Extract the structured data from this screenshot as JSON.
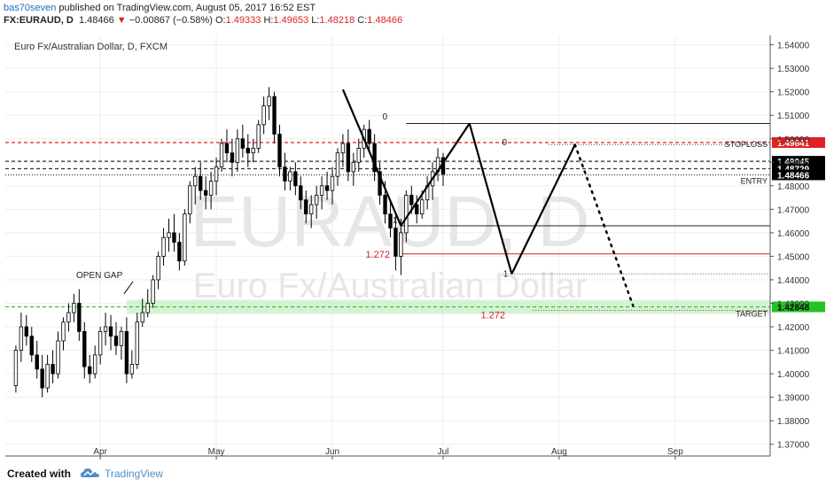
{
  "header": {
    "author": "bas70seven",
    "published": "published on TradingView.com, August 05, 2017 16:52 EST",
    "symbol": "FX:EURAUD, D",
    "last": "1.48466",
    "change": "−0.00867 (−0.58%)",
    "o_label": "O:",
    "o": "1.49333",
    "h_label": "H:",
    "h": "1.49653",
    "l_label": "L:",
    "l": "1.48218",
    "c_label": "C:",
    "c": "1.48466"
  },
  "footer": {
    "created_with": "Created with",
    "brand": "TradingView"
  },
  "colors": {
    "up": "#ffffff",
    "down": "#000000",
    "stoploss": "#e02020",
    "target": "#22c322",
    "fib": "#d62424"
  },
  "chart_data": {
    "type": "candlestick",
    "title": "Euro Fx/Australian Dollar, D, FXCM",
    "watermark_symbol": "EURAUD, D",
    "watermark_name": "Euro Fx/Australian Dollar",
    "ylim": [
      1.365,
      1.544
    ],
    "y_ticks": [
      "1.37000",
      "1.38000",
      "1.39000",
      "1.40000",
      "1.41000",
      "1.42000",
      "1.43000",
      "1.44000",
      "1.45000",
      "1.46000",
      "1.47000",
      "1.48000",
      "1.49000",
      "1.50000",
      "1.51000",
      "1.52000",
      "1.53000",
      "1.54000"
    ],
    "x_ticks": [
      {
        "label": "Apr",
        "x": 16
      },
      {
        "label": "May",
        "x": 38
      },
      {
        "label": "Jun",
        "x": 60
      },
      {
        "label": "Jul",
        "x": 81
      },
      {
        "label": "Aug",
        "x": 103
      },
      {
        "label": "Sep",
        "x": 125
      }
    ],
    "x_range": [
      -2,
      143
    ],
    "candles": [
      [
        1.395,
        1.412,
        1.392,
        1.41
      ],
      [
        1.41,
        1.426,
        1.405,
        1.42
      ],
      [
        1.42,
        1.425,
        1.412,
        1.416
      ],
      [
        1.416,
        1.42,
        1.405,
        1.408
      ],
      [
        1.408,
        1.414,
        1.398,
        1.402
      ],
      [
        1.402,
        1.408,
        1.39,
        1.394
      ],
      [
        1.394,
        1.408,
        1.392,
        1.404
      ],
      [
        1.404,
        1.41,
        1.396,
        1.4
      ],
      [
        1.4,
        1.418,
        1.398,
        1.414
      ],
      [
        1.414,
        1.424,
        1.41,
        1.422
      ],
      [
        1.422,
        1.43,
        1.418,
        1.426
      ],
      [
        1.426,
        1.434,
        1.422,
        1.43
      ],
      [
        1.43,
        1.436,
        1.414,
        1.418
      ],
      [
        1.418,
        1.422,
        1.398,
        1.403
      ],
      [
        1.403,
        1.408,
        1.396,
        1.4
      ],
      [
        1.4,
        1.412,
        1.398,
        1.408
      ],
      [
        1.408,
        1.42,
        1.404,
        1.418
      ],
      [
        1.418,
        1.426,
        1.412,
        1.42
      ],
      [
        1.42,
        1.425,
        1.41,
        1.416
      ],
      [
        1.416,
        1.422,
        1.408,
        1.412
      ],
      [
        1.412,
        1.42,
        1.406,
        1.418
      ],
      [
        1.418,
        1.424,
        1.396,
        1.4
      ],
      [
        1.4,
        1.41,
        1.398,
        1.404
      ],
      [
        1.404,
        1.426,
        1.402,
        1.422
      ],
      [
        1.422,
        1.432,
        1.42,
        1.426
      ],
      [
        1.426,
        1.436,
        1.424,
        1.43
      ],
      [
        1.43,
        1.442,
        1.428,
        1.44
      ],
      [
        1.44,
        1.452,
        1.436,
        1.45
      ],
      [
        1.45,
        1.462,
        1.446,
        1.458
      ],
      [
        1.458,
        1.466,
        1.452,
        1.46
      ],
      [
        1.46,
        1.468,
        1.452,
        1.456
      ],
      [
        1.456,
        1.46,
        1.444,
        1.448
      ],
      [
        1.448,
        1.47,
        1.446,
        1.468
      ],
      [
        1.468,
        1.482,
        1.464,
        1.48
      ],
      [
        1.48,
        1.488,
        1.472,
        1.484
      ],
      [
        1.484,
        1.49,
        1.474,
        1.478
      ],
      [
        1.478,
        1.484,
        1.47,
        1.476
      ],
      [
        1.476,
        1.486,
        1.47,
        1.482
      ],
      [
        1.482,
        1.492,
        1.476,
        1.488
      ],
      [
        1.488,
        1.5,
        1.486,
        1.498
      ],
      [
        1.498,
        1.504,
        1.49,
        1.494
      ],
      [
        1.494,
        1.5,
        1.484,
        1.49
      ],
      [
        1.49,
        1.504,
        1.486,
        1.5
      ],
      [
        1.5,
        1.506,
        1.492,
        1.496
      ],
      [
        1.496,
        1.502,
        1.488,
        1.494
      ],
      [
        1.494,
        1.5,
        1.49,
        1.496
      ],
      [
        1.496,
        1.508,
        1.494,
        1.506
      ],
      [
        1.506,
        1.518,
        1.502,
        1.514
      ],
      [
        1.514,
        1.522,
        1.508,
        1.518
      ],
      [
        1.518,
        1.52,
        1.498,
        1.502
      ],
      [
        1.502,
        1.506,
        1.484,
        1.488
      ],
      [
        1.488,
        1.494,
        1.478,
        1.482
      ],
      [
        1.482,
        1.488,
        1.478,
        1.486
      ],
      [
        1.486,
        1.49,
        1.476,
        1.48
      ],
      [
        1.48,
        1.484,
        1.47,
        1.474
      ],
      [
        1.474,
        1.478,
        1.464,
        1.468
      ],
      [
        1.468,
        1.476,
        1.462,
        1.472
      ],
      [
        1.472,
        1.48,
        1.466,
        1.476
      ],
      [
        1.476,
        1.484,
        1.47,
        1.48
      ],
      [
        1.48,
        1.486,
        1.474,
        1.478
      ],
      [
        1.478,
        1.488,
        1.472,
        1.484
      ],
      [
        1.484,
        1.496,
        1.48,
        1.494
      ],
      [
        1.494,
        1.502,
        1.488,
        1.498
      ],
      [
        1.498,
        1.504,
        1.482,
        1.486
      ],
      [
        1.486,
        1.494,
        1.48,
        1.49
      ],
      [
        1.49,
        1.5,
        1.486,
        1.496
      ],
      [
        1.496,
        1.506,
        1.492,
        1.504
      ],
      [
        1.504,
        1.508,
        1.494,
        1.498
      ],
      [
        1.498,
        1.502,
        1.482,
        1.486
      ],
      [
        1.486,
        1.49,
        1.472,
        1.476
      ],
      [
        1.476,
        1.482,
        1.464,
        1.468
      ],
      [
        1.468,
        1.474,
        1.458,
        1.462
      ],
      [
        1.462,
        1.468,
        1.444,
        1.45
      ],
      [
        1.45,
        1.466,
        1.442,
        1.46
      ],
      [
        1.46,
        1.478,
        1.456,
        1.476
      ],
      [
        1.476,
        1.48,
        1.468,
        1.472
      ],
      [
        1.472,
        1.476,
        1.464,
        1.468
      ],
      [
        1.468,
        1.478,
        1.466,
        1.474
      ],
      [
        1.474,
        1.484,
        1.47,
        1.48
      ],
      [
        1.48,
        1.49,
        1.474,
        1.486
      ],
      [
        1.486,
        1.496,
        1.482,
        1.492
      ],
      [
        1.492,
        1.494,
        1.48,
        1.485
      ]
    ],
    "horizontal_levels": [
      {
        "name": "STOPLOSS",
        "value": 1.49841,
        "style": "dashed",
        "color": "#e02020",
        "price_label": "1.49841"
      },
      {
        "name": "",
        "value": 1.49045,
        "style": "dashed",
        "color": "#333333",
        "price_label": "1.49045"
      },
      {
        "name": "",
        "value": 1.48729,
        "style": "dashed",
        "color": "#333333",
        "price_label": "1.48729"
      },
      {
        "name": "ENTRY",
        "value": 1.48466,
        "style": "dotted",
        "color": "#333333",
        "price_label": "1.48466"
      },
      {
        "name": "TARGET",
        "value": 1.42848,
        "style": "dashed",
        "color": "#22c322",
        "price_label": "1.42848"
      }
    ],
    "annotations": {
      "open_gap": "OPEN GAP",
      "fib_zero_1": "0",
      "fib_zero_2": "0",
      "fib_one_1": "1",
      "fib_one_2": "1",
      "fib_1272_1": "1.272",
      "fib_1272_2": "1.272"
    },
    "pattern_points": [
      {
        "x": 62,
        "y": 1.521
      },
      {
        "x": 73,
        "y": 1.463
      },
      {
        "x": 86,
        "y": 1.5065
      },
      {
        "x": 94,
        "y": 1.4425
      },
      {
        "x": 106,
        "y": 1.4975
      }
    ],
    "projection": [
      {
        "x": 106,
        "y": 1.4975
      },
      {
        "x": 117,
        "y": 1.429
      }
    ]
  }
}
